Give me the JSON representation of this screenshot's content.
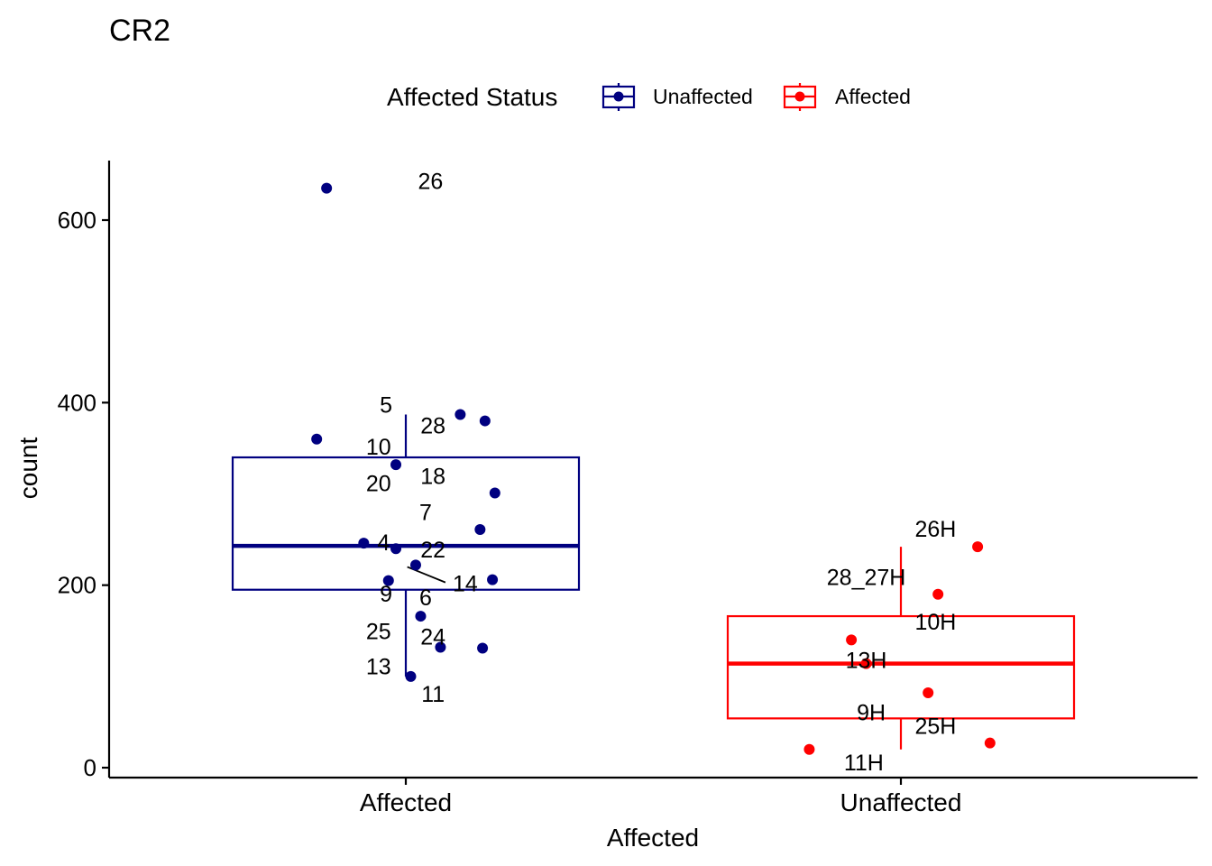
{
  "chart_data": {
    "type": "boxplot",
    "title": "CR2",
    "xlabel": "Affected",
    "ylabel": "count",
    "ylim": [
      -10,
      665
    ],
    "yticks": [
      0,
      200,
      400,
      600
    ],
    "categories": [
      "Affected",
      "Unaffected"
    ],
    "legend": {
      "title": "Affected Status",
      "placement": "top",
      "entries": [
        {
          "label": "Unaffected",
          "color": "#000080"
        },
        {
          "label": "Affected",
          "color": "#ff0000"
        }
      ]
    },
    "boxes": [
      {
        "category": "Affected",
        "group": "Unaffected",
        "color": "#000080",
        "q1": 195,
        "median": 243,
        "q3": 340,
        "whisker_low": 100,
        "whisker_high": 387
      }
    ],
    "boxes_extra": [
      {
        "category": "Unaffected",
        "group": "Affected",
        "color": "#ff0000",
        "q1": 54,
        "median": 114,
        "q3": 166,
        "whisker_low": 20,
        "whisker_high": 242
      }
    ],
    "points": [
      {
        "category": "Affected",
        "jitter": -0.16,
        "y": 635,
        "label": "26",
        "lx": 0.05,
        "ly": 643,
        "color": "#000080"
      },
      {
        "category": "Affected",
        "jitter": 0.11,
        "y": 387,
        "label": "5",
        "lx": -0.04,
        "ly": 398,
        "color": "#000080"
      },
      {
        "category": "Affected",
        "jitter": 0.16,
        "y": 380,
        "label": "28",
        "lx": 0.055,
        "ly": 375,
        "color": "#000080"
      },
      {
        "category": "Affected",
        "jitter": -0.18,
        "y": 360,
        "label": "10",
        "lx": -0.055,
        "ly": 352,
        "color": "#000080"
      },
      {
        "category": "Affected",
        "jitter": -0.02,
        "y": 332,
        "label": "18",
        "lx": 0.055,
        "ly": 320,
        "color": "#000080"
      },
      {
        "category": "Affected",
        "jitter": 0.18,
        "y": 301,
        "label": "20",
        "lx": -0.055,
        "ly": 312,
        "color": "#000080"
      },
      {
        "category": "Affected",
        "jitter": 0.15,
        "y": 261,
        "label": "7",
        "lx": 0.04,
        "ly": 280,
        "color": "#000080"
      },
      {
        "category": "Affected",
        "jitter": -0.085,
        "y": 246,
        "label": "4",
        "lx": -0.045,
        "ly": 247,
        "color": "#000080"
      },
      {
        "category": "Affected",
        "jitter": -0.02,
        "y": 240,
        "label": "22",
        "lx": 0.055,
        "ly": 239,
        "color": "#000080"
      },
      {
        "category": "Affected",
        "jitter": 0.02,
        "y": 222,
        "label": "14",
        "lx": 0.12,
        "ly": 202,
        "color": "#000080"
      },
      {
        "category": "Affected",
        "jitter": -0.035,
        "y": 205,
        "label": "9",
        "lx": -0.04,
        "ly": 191,
        "color": "#000080"
      },
      {
        "category": "Affected",
        "jitter": 0.175,
        "y": 206,
        "label": "6",
        "lx": 0.04,
        "ly": 187,
        "color": "#000080"
      },
      {
        "category": "Affected",
        "jitter": 0.03,
        "y": 166,
        "label": "25",
        "lx": -0.055,
        "ly": 150,
        "color": "#000080"
      },
      {
        "category": "Affected",
        "jitter": 0.07,
        "y": 132,
        "label": "24",
        "lx": 0.055,
        "ly": 144,
        "color": "#000080"
      },
      {
        "category": "Affected",
        "jitter": 0.155,
        "y": 131,
        "label": "13",
        "lx": -0.055,
        "ly": 111,
        "color": "#000080"
      },
      {
        "category": "Affected",
        "jitter": 0.01,
        "y": 100,
        "label": "11",
        "lx": 0.055,
        "ly": 81,
        "color": "#000080"
      },
      {
        "category": "Unaffected",
        "jitter": 0.155,
        "y": 242,
        "label": "26H",
        "lx": 0.07,
        "ly": 262,
        "color": "#ff0000"
      },
      {
        "category": "Unaffected",
        "jitter": 0.075,
        "y": 190,
        "label": "28_27H",
        "lx": -0.07,
        "ly": 209,
        "color": "#ff0000"
      },
      {
        "category": "Unaffected",
        "jitter": -0.1,
        "y": 140,
        "label": "10H",
        "lx": 0.07,
        "ly": 160,
        "color": "#ff0000"
      },
      {
        "category": "Unaffected",
        "jitter": -0.07,
        "y": 114,
        "label": "13H",
        "lx": -0.07,
        "ly": 118,
        "color": "#ff0000"
      },
      {
        "category": "Unaffected",
        "jitter": 0.055,
        "y": 82,
        "label": "9H",
        "lx": -0.06,
        "ly": 61,
        "color": "#ff0000"
      },
      {
        "category": "Unaffected",
        "jitter": 0.18,
        "y": 27,
        "label": "25H",
        "lx": 0.07,
        "ly": 46,
        "color": "#ff0000"
      },
      {
        "category": "Unaffected",
        "jitter": -0.185,
        "y": 20,
        "label": "11H",
        "lx": -0.075,
        "ly": 6,
        "color": "#ff0000"
      }
    ],
    "segments": [
      {
        "category": "Affected",
        "x1": 0.003,
        "y1": 220,
        "x2": 0.08,
        "y2": 203
      }
    ]
  }
}
